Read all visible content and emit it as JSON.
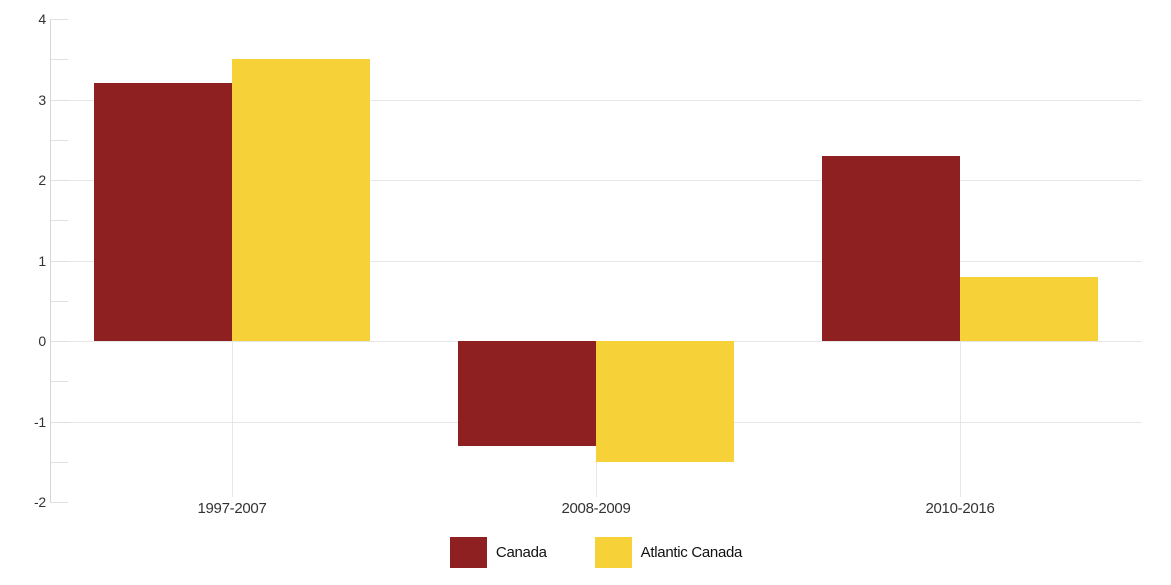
{
  "chart_data": {
    "type": "bar",
    "title": "",
    "xlabel": "",
    "ylabel": "",
    "categories": [
      "1997-2007",
      "2008-2009",
      "2010-2016"
    ],
    "series": [
      {
        "name": "Canada",
        "color": "#8e2021",
        "values": [
          3.2,
          -1.3,
          2.3
        ]
      },
      {
        "name": "Atlantic Canada",
        "color": "#f6d137",
        "values": [
          3.5,
          -1.5,
          0.8
        ]
      }
    ],
    "ylim": [
      -2,
      4
    ],
    "ytick_step": 1,
    "yminor_step": 0.5,
    "ytick_labels": [
      "-2",
      "-1",
      "0",
      "1",
      "2",
      "3",
      "4"
    ],
    "grid": true,
    "legend_position": "bottom"
  },
  "colors": {
    "gridline": "#e6e6e6",
    "axis_line": "#d6d6d6",
    "minor_tick": "#e0e0e0",
    "axis_label_text": "#333333",
    "legend_text": "#111111",
    "background": "#ffffff"
  }
}
